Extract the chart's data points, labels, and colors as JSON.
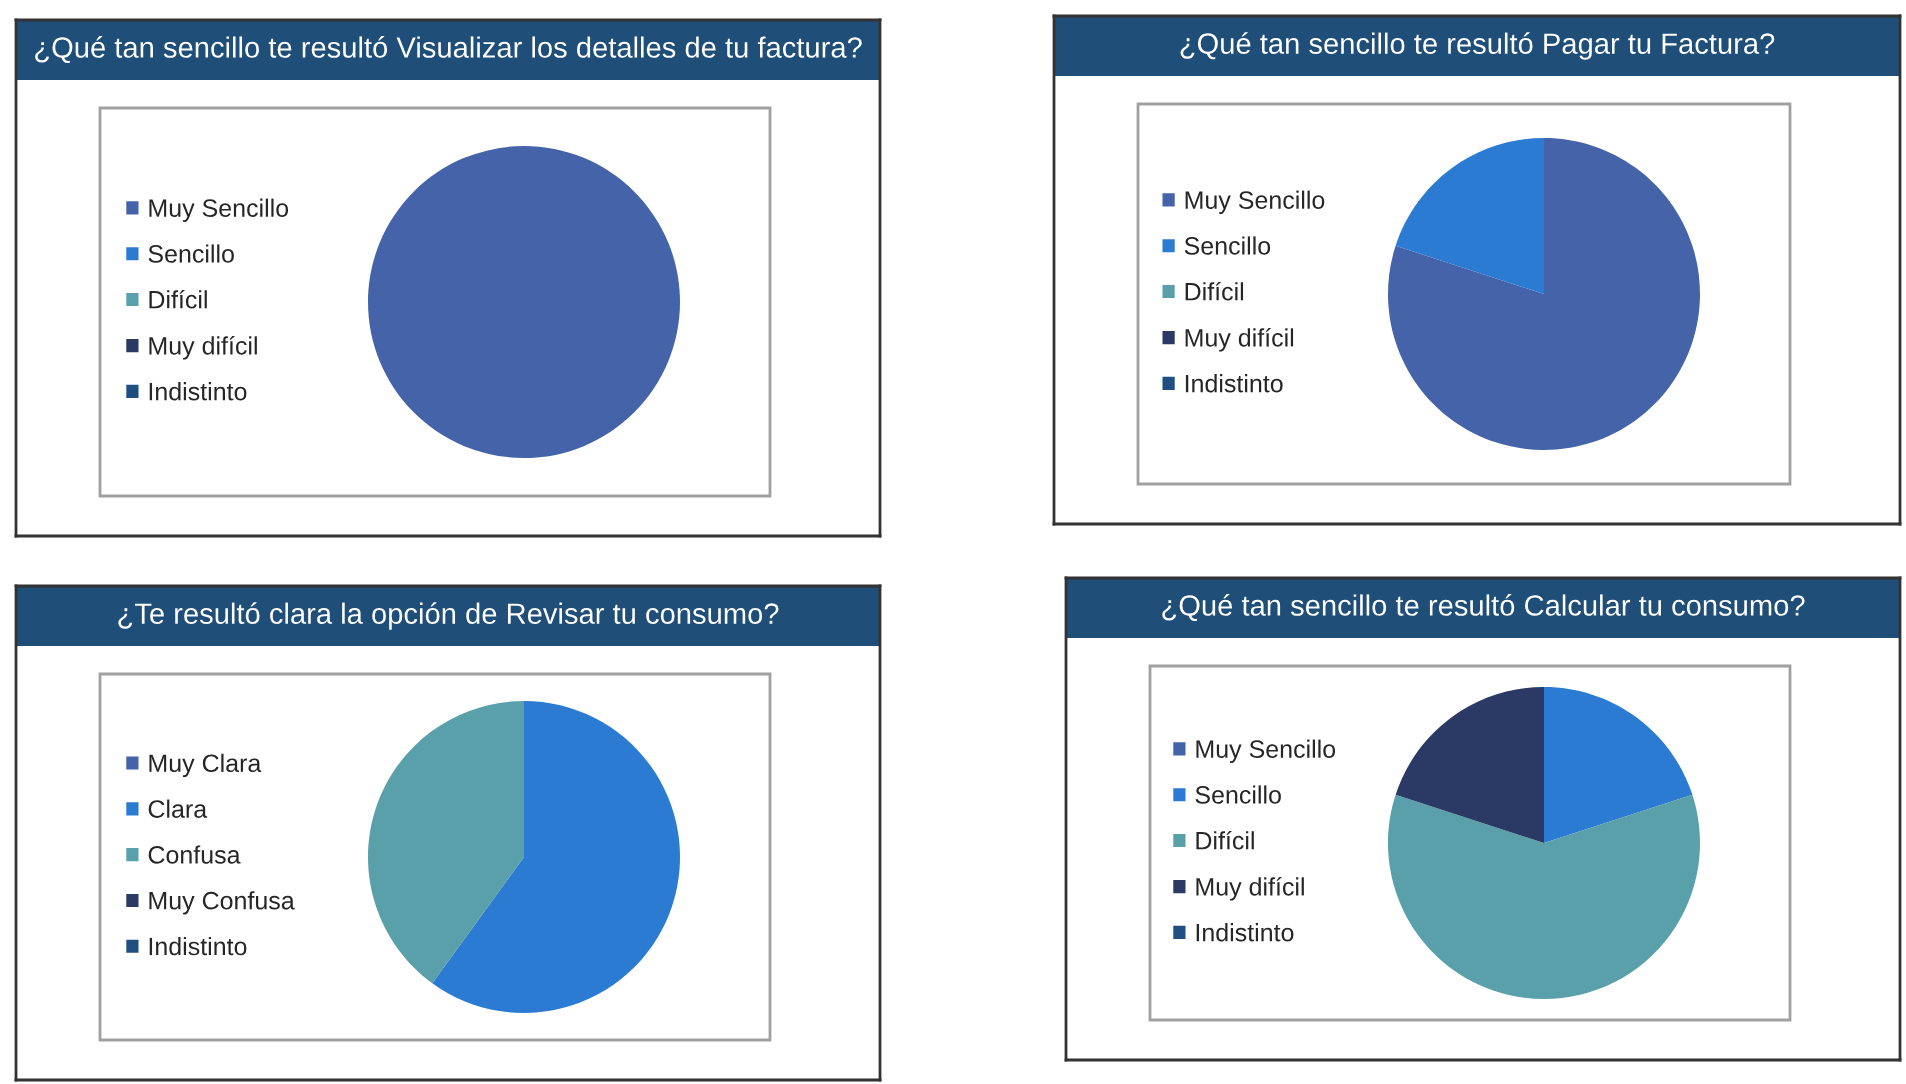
{
  "chart_data": [
    {
      "type": "pie",
      "title": "¿Qué tan sencillo te resultó Visualizar los detalles de tu factura?",
      "categories": [
        "Muy Sencillo",
        "Sencillo",
        "Difícil",
        "Muy difícil",
        "Indistinto"
      ],
      "values": [
        100,
        0,
        0,
        0,
        0
      ],
      "colors": [
        "#4463a8",
        "#2a7bd1",
        "#5aa0aa",
        "#2b3a64",
        "#1f4f80"
      ],
      "legend": "left"
    },
    {
      "type": "pie",
      "title": "¿Qué tan sencillo te resultó Pagar tu Factura?",
      "categories": [
        "Muy Sencillo",
        "Sencillo",
        "Difícil",
        "Muy difícil",
        "Indistinto"
      ],
      "values": [
        80,
        20,
        0,
        0,
        0
      ],
      "colors": [
        "#4463a8",
        "#2a7bd1",
        "#5aa0aa",
        "#2b3a64",
        "#1f4f80"
      ],
      "legend": "left"
    },
    {
      "type": "pie",
      "title": "¿Te resultó clara la opción de Revisar tu consumo?",
      "categories": [
        "Muy Clara",
        "Clara",
        "Confusa",
        "Muy Confusa",
        "Indistinto"
      ],
      "values": [
        0,
        60,
        40,
        0,
        0
      ],
      "colors": [
        "#4463a8",
        "#2a7bd1",
        "#5aa0aa",
        "#2b3a64",
        "#1f4f80"
      ],
      "legend": "left"
    },
    {
      "type": "pie",
      "title": "¿Qué tan sencillo te resultó Calcular tu consumo?",
      "categories": [
        "Muy Sencillo",
        "Sencillo",
        "Difícil",
        "Muy difícil",
        "Indistinto"
      ],
      "values": [
        0,
        20,
        60,
        20,
        0
      ],
      "colors": [
        "#4463a8",
        "#2a7bd1",
        "#5aa0aa",
        "#2b3a64",
        "#1f4f80"
      ],
      "legend": "left"
    }
  ]
}
